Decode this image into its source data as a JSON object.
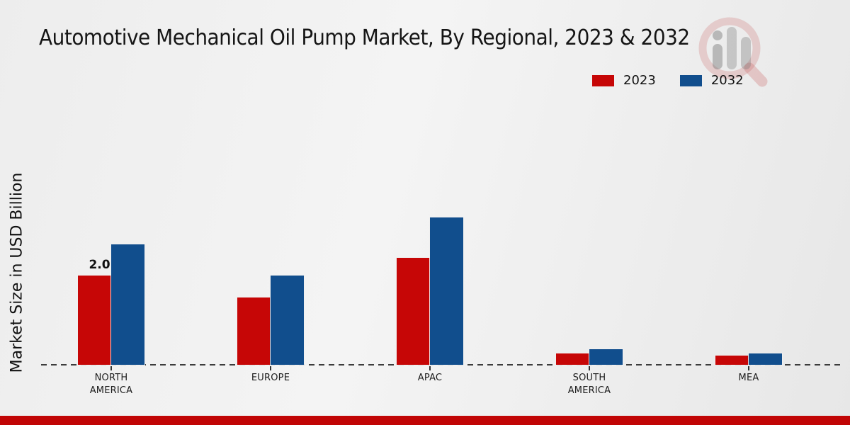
{
  "title": "Automotive Mechanical Oil Pump Market, By Regional, 2023 & 2032",
  "ylabel": "Market Size in USD Billion",
  "colors": {
    "series_2023": "#c60606",
    "series_2032": "#114e8d",
    "footer_strip": "#c10505",
    "axis_dash": "#3c3c3c",
    "text": "#151515"
  },
  "legend": [
    {
      "label": "2023",
      "color": "#c60606"
    },
    {
      "label": "2032",
      "color": "#114e8d"
    }
  ],
  "watermark_icon": "market-research-magnifier-logo",
  "chart_data": {
    "type": "bar",
    "title": "Automotive Mechanical Oil Pump Market, By Regional, 2023 & 2032",
    "xlabel": "",
    "ylabel": "Market Size in USD Billion",
    "categories": [
      "NORTH AMERICA",
      "EUROPE",
      "APAC",
      "SOUTH AMERICA",
      "MEA"
    ],
    "series": [
      {
        "name": "2023",
        "color": "#c60606",
        "values": [
          2.0,
          1.5,
          2.4,
          0.25,
          0.2
        ],
        "point_labels": [
          "2.0",
          "",
          "",
          "",
          ""
        ]
      },
      {
        "name": "2032",
        "color": "#114e8d",
        "values": [
          2.7,
          2.0,
          3.3,
          0.35,
          0.25
        ],
        "point_labels": [
          "",
          "",
          "",
          "",
          ""
        ]
      }
    ],
    "ylim": [
      0,
      3.5
    ],
    "y_axis_ticks_visible": false,
    "grid": false,
    "baseline_style": "dashed",
    "legend_position": "top-right",
    "units": "USD Billion"
  }
}
